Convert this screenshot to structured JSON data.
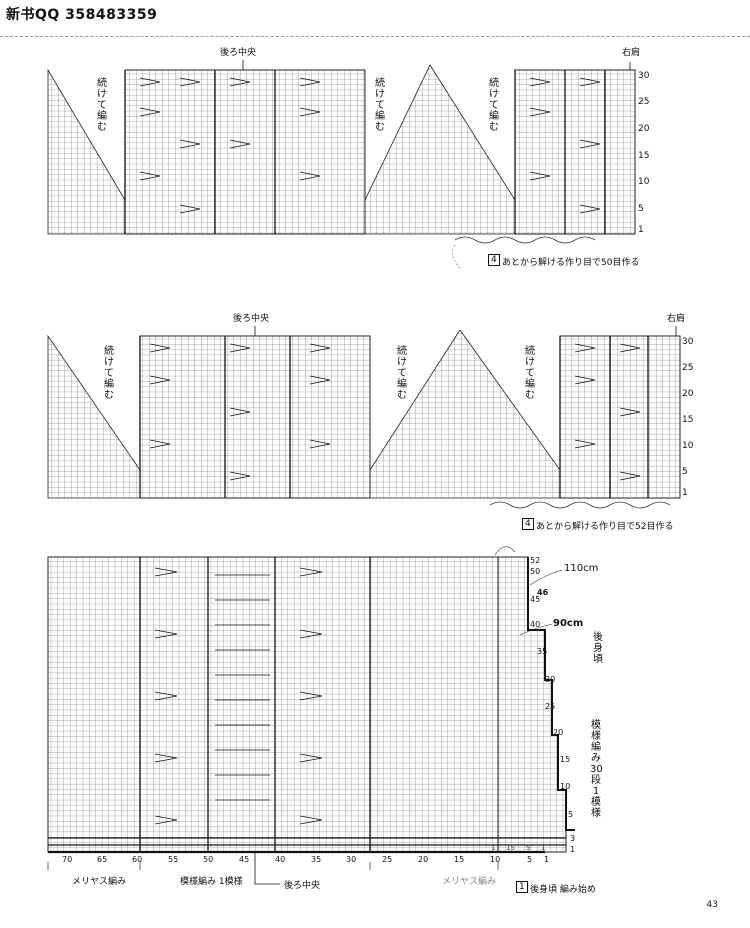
{
  "header": {
    "text": "新书QQ 358483359"
  },
  "chart1": {
    "center_label": "後ろ中央",
    "shoulder_label": "右肩",
    "continue_left": "続けて編む",
    "continue_mid": "続けて編む",
    "continue_right": "続けて編む",
    "row_numbers": [
      "30",
      "25",
      "20",
      "15",
      "10",
      "5",
      "1"
    ],
    "cast_on_box": "4",
    "cast_on_text": "あとから解ける作り目で50目作る"
  },
  "chart2": {
    "center_label": "後ろ中央",
    "shoulder_label": "右肩",
    "continue_left": "続けて編む",
    "continue_mid": "続けて編む",
    "continue_right": "続けて編む",
    "row_numbers": [
      "30",
      "25",
      "20",
      "15",
      "10",
      "5",
      "1"
    ],
    "cast_on_box": "4",
    "cast_on_text": "あとから解ける作り目で52目作る"
  },
  "chart3": {
    "row_numbers": [
      "52",
      "50",
      "46",
      "45",
      "40",
      "35",
      "30",
      "25",
      "20",
      "15",
      "10",
      "5",
      "3",
      "1"
    ],
    "col_numbers": [
      "70",
      "65",
      "60",
      "55",
      "50",
      "45",
      "40",
      "35",
      "30",
      "25",
      "20",
      "15",
      "10",
      "5",
      "1"
    ],
    "sub_cols": [
      "1",
      "15",
      "5",
      "1"
    ],
    "measure_110": "110cm",
    "measure_90": "90cm",
    "back_body": "後身頃",
    "pattern_repeat": "模様編み30段1模様",
    "stockinette_left": "メリヤス編み",
    "pattern_one": "模様編み 1模様",
    "center_label": "後ろ中央",
    "stockinette_right": "メリヤス編み",
    "start_box": "1",
    "start_text": "後身頃 編み始め"
  },
  "page_number": "43"
}
